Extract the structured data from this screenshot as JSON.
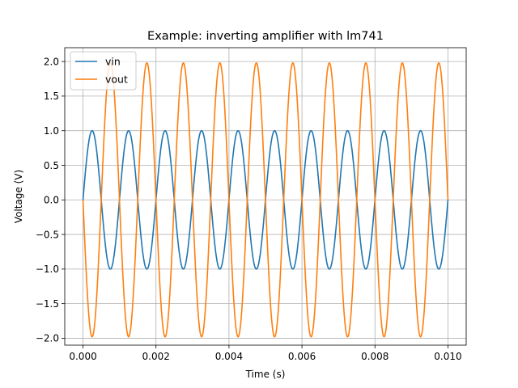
{
  "chart_data": {
    "type": "line",
    "title": "Example: inverting amplifier with lm741",
    "xlabel": "Time (s)",
    "ylabel": "Voltage (V)",
    "xlim": [
      -0.0005,
      0.0105
    ],
    "ylim": [
      -2.1,
      2.2
    ],
    "grid": true,
    "legend_position": "top-left",
    "x_ticks": [
      0.0,
      0.002,
      0.004,
      0.006,
      0.008,
      0.01
    ],
    "x_tick_labels": [
      "0.000",
      "0.002",
      "0.004",
      "0.006",
      "0.008",
      "0.010"
    ],
    "y_ticks": [
      -2.0,
      -1.5,
      -1.0,
      -0.5,
      0.0,
      0.5,
      1.0,
      1.5,
      2.0
    ],
    "y_tick_labels": [
      "−2.0",
      "−1.5",
      "−1.0",
      "−0.5",
      "0.0",
      "0.5",
      "1.0",
      "1.5",
      "2.0"
    ],
    "x_range": [
      0.0,
      0.01
    ],
    "series": [
      {
        "name": "vin",
        "color": "#1f77b4",
        "function": "sine",
        "amplitude": 1.0,
        "frequency_hz": 1000
      },
      {
        "name": "vout",
        "color": "#ff7f0e",
        "function": "sine",
        "amplitude": -1.98,
        "frequency_hz": 1000
      }
    ]
  }
}
